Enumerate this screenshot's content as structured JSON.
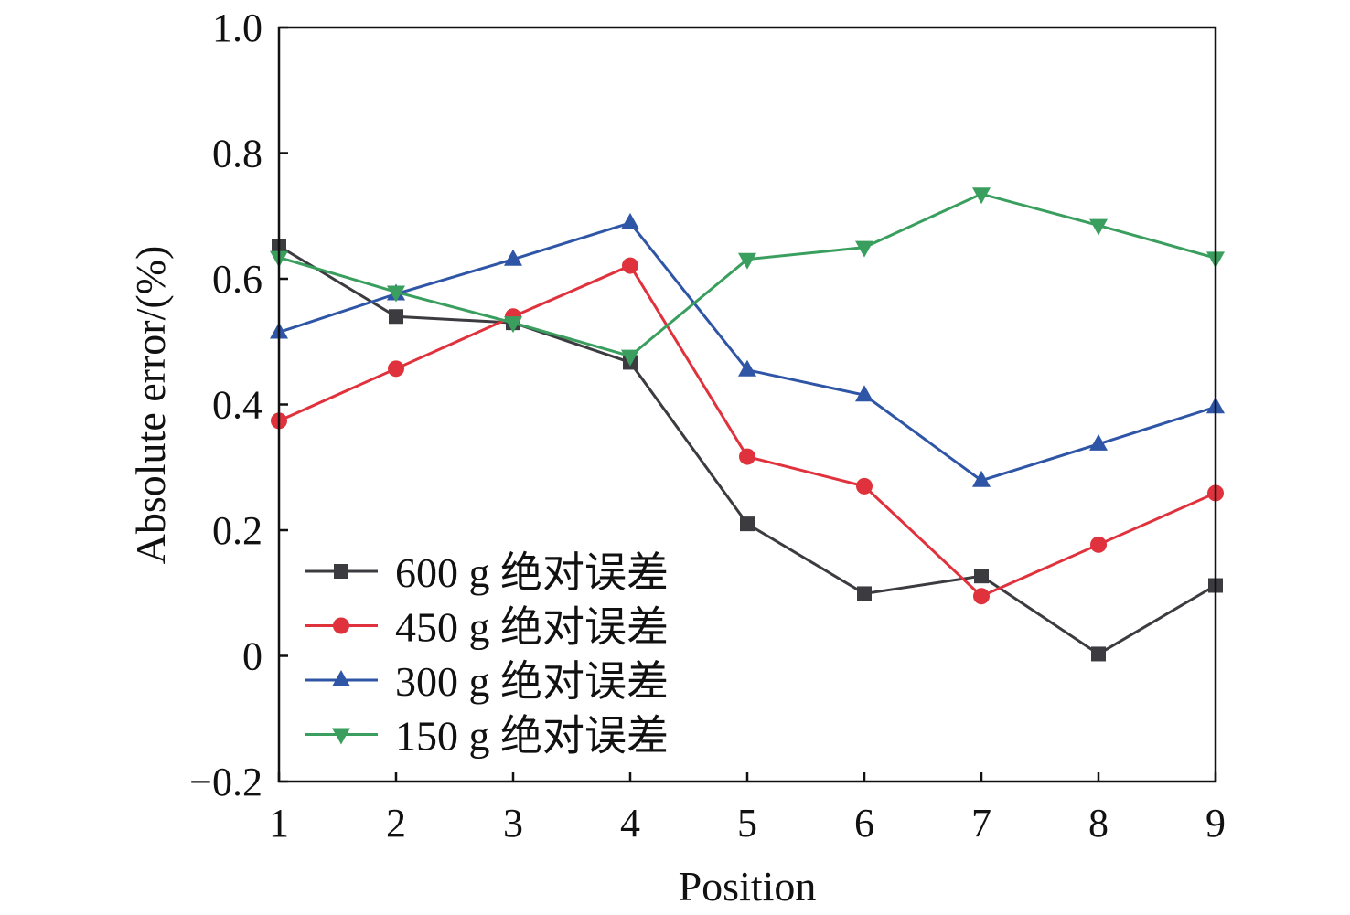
{
  "chart_data": {
    "type": "line",
    "title": "",
    "xlabel": "Position",
    "ylabel": "Absolute error/(%)",
    "xlim": [
      1,
      9
    ],
    "ylim": [
      -0.2,
      1.0
    ],
    "x": [
      1,
      2,
      3,
      4,
      5,
      6,
      7,
      8,
      9
    ],
    "xticks": [
      "1",
      "2",
      "3",
      "4",
      "5",
      "6",
      "7",
      "8",
      "9"
    ],
    "yticks": [
      {
        "v": -0.2,
        "label": "−0.2"
      },
      {
        "v": 0,
        "label": "0"
      },
      {
        "v": 0.2,
        "label": "0.2"
      },
      {
        "v": 0.4,
        "label": "0.4"
      },
      {
        "v": 0.6,
        "label": "0.6"
      },
      {
        "v": 0.8,
        "label": "0.8"
      },
      {
        "v": 1.0,
        "label": "1.0"
      }
    ],
    "grid": false,
    "legend_position": "bottom-left",
    "series": [
      {
        "name": "600 g 绝对误差",
        "color": "#3b3b40",
        "marker": "square",
        "values": [
          0.652,
          0.54,
          0.53,
          0.467,
          0.21,
          0.099,
          0.127,
          0.003,
          0.112
        ]
      },
      {
        "name": "450 g 绝对误差",
        "color": "#e0323c",
        "marker": "circle",
        "values": [
          0.374,
          0.457,
          0.54,
          0.621,
          0.317,
          0.27,
          0.095,
          0.177,
          0.259
        ]
      },
      {
        "name": "300 g 绝对误差",
        "color": "#2f56a6",
        "marker": "triangle-up",
        "values": [
          0.515,
          0.576,
          0.631,
          0.689,
          0.455,
          0.415,
          0.279,
          0.337,
          0.396
        ]
      },
      {
        "name": "150 g 绝对误差",
        "color": "#3a9f5e",
        "marker": "triangle-down",
        "values": [
          0.634,
          0.579,
          0.53,
          0.477,
          0.631,
          0.65,
          0.735,
          0.685,
          0.633
        ]
      }
    ]
  }
}
